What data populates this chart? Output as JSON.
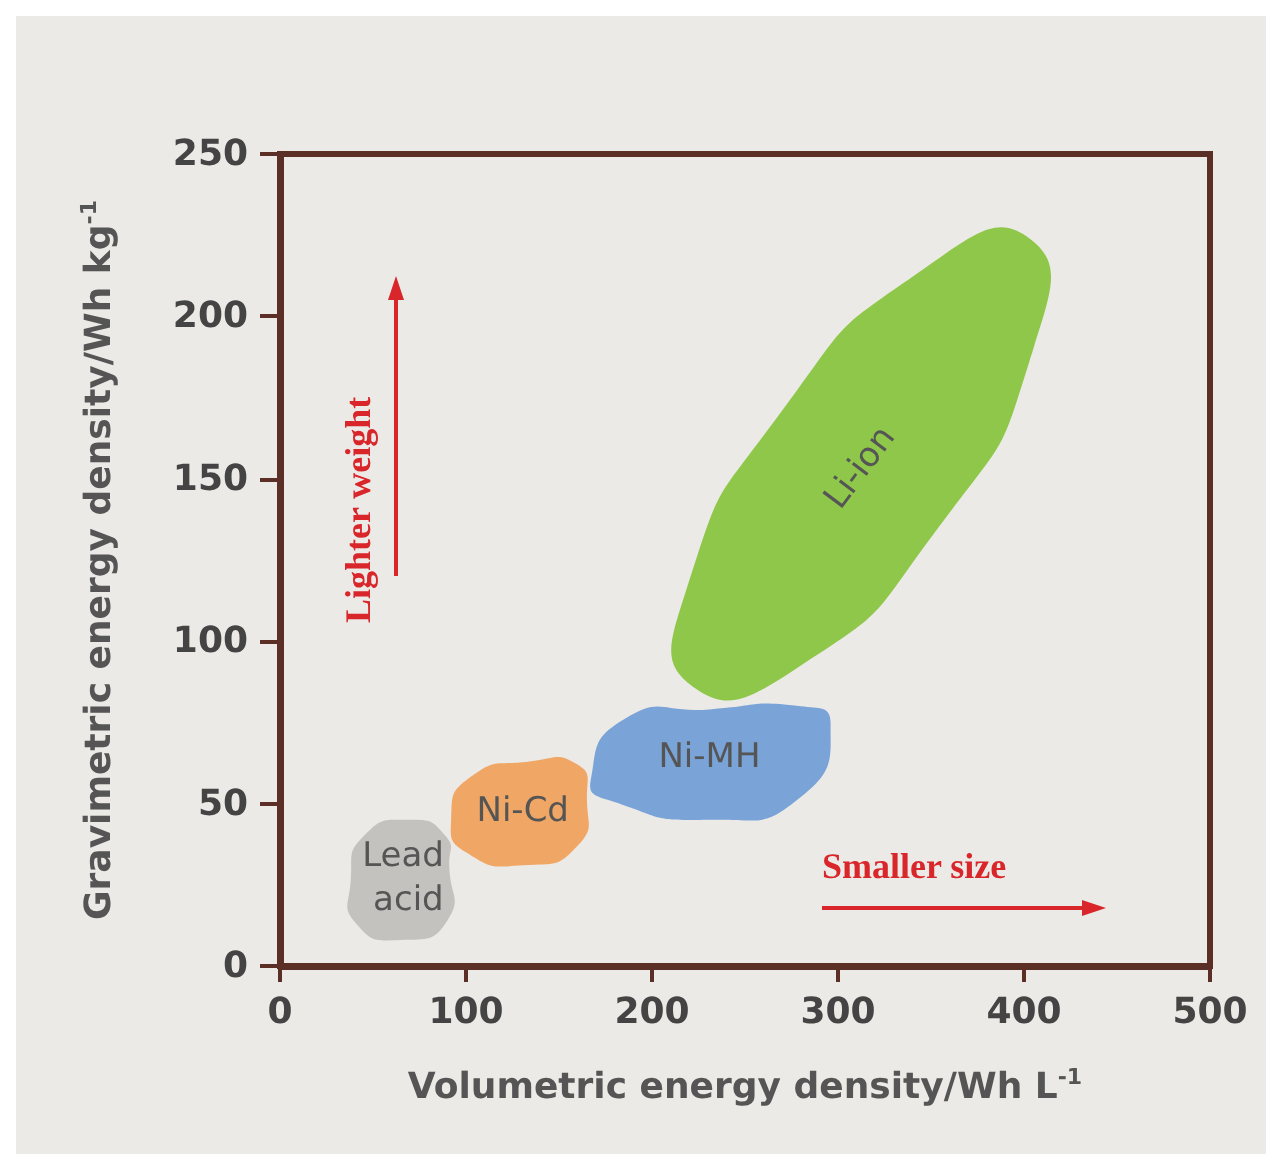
{
  "chart_data": {
    "type": "area",
    "xlabel": "Volumetric energy density/Wh L$^{-1}$",
    "ylabel": "Gravimetric energy density/Wh kg$^{-1}$",
    "xlim": [
      0,
      500
    ],
    "ylim": [
      0,
      250
    ],
    "xticks": [
      0,
      100,
      200,
      300,
      400,
      500
    ],
    "yticks": [
      0,
      50,
      100,
      150,
      200,
      250
    ],
    "legend": false,
    "annotations": [
      "Lighter weight",
      "Smaller size"
    ],
    "series": [
      {
        "name": "Lead acid",
        "color": "#c4c2bf",
        "x": [
          91,
          90,
          65,
          41,
          38,
          45,
          70,
          89
        ],
        "values": [
          31,
          14,
          8,
          13,
          26,
          40,
          45,
          40
        ]
      },
      {
        "name": "Ni-Cd",
        "color": "#f0a766",
        "x": [
          165,
          160,
          131,
          100,
          92,
          102,
          134,
          160
        ],
        "values": [
          52,
          37,
          31,
          35,
          45,
          58,
          63,
          62
        ]
      },
      {
        "name": "Ni-MH",
        "color": "#7aa3d8",
        "x": [
          296,
          280,
          231,
          177,
          167,
          185,
          231,
          280
        ],
        "values": [
          75,
          52,
          45,
          51,
          57,
          76,
          79,
          80
        ]
      },
      {
        "name": "Li-ion",
        "color": "#8fc74a",
        "x": [
          403,
          405,
          354,
          276,
          222,
          218,
          270,
          347
        ],
        "values": [
          224,
          190,
          135,
          91,
          86,
          115,
          171,
          215
        ]
      }
    ]
  }
}
